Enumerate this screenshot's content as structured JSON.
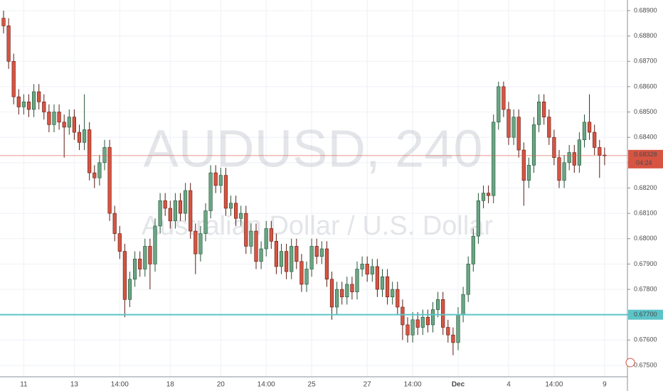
{
  "chart_data": {
    "type": "candlestick",
    "title": "AUDUSD, 240",
    "subtitle": "Australian Dollar / U.S. Dollar",
    "categories": [
      null,
      null,
      null,
      null,
      "11",
      null,
      null,
      null,
      null,
      null,
      null,
      null,
      null,
      null,
      "13",
      null,
      null,
      null,
      null,
      null,
      null,
      null,
      null,
      "14:00",
      null,
      null,
      null,
      null,
      null,
      null,
      null,
      null,
      null,
      "18",
      null,
      null,
      null,
      null,
      null,
      null,
      null,
      null,
      null,
      "20",
      null,
      null,
      null,
      null,
      null,
      null,
      null,
      null,
      "14:00",
      null,
      null,
      null,
      null,
      null,
      null,
      null,
      null,
      "25",
      null,
      null,
      null,
      null,
      null,
      null,
      null,
      null,
      null,
      null,
      "27",
      null,
      null,
      null,
      null,
      null,
      null,
      null,
      null,
      "14:00",
      null,
      null,
      null,
      null,
      null,
      null,
      null,
      null,
      "Dec",
      null,
      null,
      null,
      null,
      null,
      null,
      null,
      null,
      null,
      "4",
      null,
      null,
      null,
      null,
      null,
      null,
      null,
      null,
      "14:00",
      null,
      null,
      null,
      null,
      null,
      null,
      null,
      null,
      null,
      "9"
    ],
    "open": [
      0.6887,
      0.6884,
      0.687,
      0.6856,
      0.6852,
      0.6854,
      0.6851,
      0.6858,
      0.6854,
      0.685,
      0.6845,
      0.685,
      0.6846,
      0.6844,
      0.6848,
      0.6842,
      0.6838,
      0.6843,
      0.6826,
      0.6824,
      0.683,
      0.6836,
      0.681,
      0.6802,
      0.6795,
      0.6776,
      0.6784,
      0.6792,
      0.6788,
      0.6797,
      0.679,
      0.6805,
      0.6815,
      0.6812,
      0.6807,
      0.6815,
      0.681,
      0.6819,
      0.6803,
      0.6794,
      0.6802,
      0.6811,
      0.6826,
      0.6821,
      0.6825,
      0.6812,
      0.6814,
      0.6808,
      0.681,
      0.6797,
      0.6803,
      0.6791,
      0.6796,
      0.6804,
      0.6799,
      0.6789,
      0.6795,
      0.6787,
      0.6797,
      0.6791,
      0.6782,
      0.6788,
      0.6797,
      0.6793,
      0.6796,
      0.6784,
      0.6773,
      0.678,
      0.6777,
      0.6782,
      0.6779,
      0.6788,
      0.679,
      0.6786,
      0.6789,
      0.678,
      0.6785,
      0.6777,
      0.678,
      0.6773,
      0.6766,
      0.6762,
      0.6768,
      0.6765,
      0.6769,
      0.6766,
      0.6772,
      0.6776,
      0.6765,
      0.6762,
      0.6759,
      0.677,
      0.6778,
      0.679,
      0.6801,
      0.6815,
      0.6818,
      0.6817,
      0.6846,
      0.686,
      0.6851,
      0.684,
      0.6848,
      0.6835,
      0.6823,
      0.6829,
      0.6845,
      0.6854,
      0.6848,
      0.684,
      0.6832,
      0.6823,
      0.683,
      0.6834,
      0.6829,
      0.6839,
      0.6846,
      0.6842,
      0.6836,
      0.6833
    ],
    "high": [
      0.689,
      0.6887,
      0.6873,
      0.6859,
      0.6857,
      0.6857,
      0.6861,
      0.6861,
      0.6857,
      0.6853,
      0.6853,
      0.6853,
      0.6849,
      0.6851,
      0.6851,
      0.6845,
      0.6857,
      0.6846,
      0.6829,
      0.6833,
      0.6839,
      0.6839,
      0.6813,
      0.6805,
      0.6798,
      0.6787,
      0.6795,
      0.6795,
      0.68,
      0.68,
      0.6808,
      0.6818,
      0.6818,
      0.6815,
      0.6818,
      0.6818,
      0.6822,
      0.6822,
      0.6806,
      0.6805,
      0.6814,
      0.6829,
      0.6829,
      0.6828,
      0.6828,
      0.6817,
      0.6817,
      0.6813,
      0.6813,
      0.6806,
      0.6806,
      0.6799,
      0.6807,
      0.6807,
      0.6802,
      0.6798,
      0.6798,
      0.68,
      0.68,
      0.6794,
      0.6791,
      0.68,
      0.68,
      0.6799,
      0.6799,
      0.6787,
      0.6783,
      0.6783,
      0.6785,
      0.6785,
      0.6791,
      0.6793,
      0.6793,
      0.6792,
      0.6792,
      0.6788,
      0.6788,
      0.6783,
      0.6783,
      0.6776,
      0.6769,
      0.6771,
      0.6771,
      0.6772,
      0.6772,
      0.6775,
      0.6779,
      0.6779,
      0.6768,
      0.6765,
      0.6773,
      0.6781,
      0.6793,
      0.6804,
      0.6818,
      0.6821,
      0.6821,
      0.6849,
      0.6862,
      0.6862,
      0.6854,
      0.6851,
      0.6851,
      0.6838,
      0.6832,
      0.6848,
      0.6857,
      0.6857,
      0.6851,
      0.6843,
      0.6835,
      0.6833,
      0.6837,
      0.6837,
      0.6842,
      0.6849,
      0.6857,
      0.6845,
      0.6839,
      0.6836
    ],
    "low": [
      0.6881,
      0.6867,
      0.6853,
      0.6849,
      0.6849,
      0.6848,
      0.6848,
      0.6851,
      0.6847,
      0.6842,
      0.6842,
      0.6843,
      0.6832,
      0.6841,
      0.6839,
      0.6835,
      0.6835,
      0.6823,
      0.682,
      0.6821,
      0.6827,
      0.6807,
      0.6799,
      0.6792,
      0.6769,
      0.6773,
      0.6781,
      0.6785,
      0.6785,
      0.678,
      0.6787,
      0.6802,
      0.6809,
      0.6804,
      0.6804,
      0.6807,
      0.6807,
      0.68,
      0.6786,
      0.6791,
      0.6799,
      0.6808,
      0.6818,
      0.6818,
      0.6809,
      0.6809,
      0.6805,
      0.6805,
      0.6794,
      0.6794,
      0.6788,
      0.6788,
      0.6793,
      0.6796,
      0.6786,
      0.6786,
      0.6784,
      0.6784,
      0.6788,
      0.6779,
      0.6779,
      0.6785,
      0.679,
      0.679,
      0.6781,
      0.6768,
      0.677,
      0.6774,
      0.6774,
      0.6776,
      0.6776,
      0.6785,
      0.6783,
      0.6783,
      0.6777,
      0.6777,
      0.6774,
      0.6774,
      0.677,
      0.676,
      0.6759,
      0.6759,
      0.6762,
      0.6762,
      0.6763,
      0.6763,
      0.6769,
      0.6762,
      0.6759,
      0.6754,
      0.6756,
      0.6767,
      0.6775,
      0.6787,
      0.6798,
      0.6812,
      0.6814,
      0.6814,
      0.6843,
      0.6848,
      0.6837,
      0.6837,
      0.6832,
      0.6813,
      0.682,
      0.6826,
      0.6842,
      0.6845,
      0.6837,
      0.6829,
      0.682,
      0.682,
      0.6827,
      0.6826,
      0.6826,
      0.6836,
      0.6839,
      0.6833,
      0.6824,
      0.6829
    ],
    "close": [
      0.6884,
      0.687,
      0.6856,
      0.6852,
      0.6854,
      0.6851,
      0.6858,
      0.6854,
      0.685,
      0.6845,
      0.685,
      0.6846,
      0.6844,
      0.6848,
      0.6842,
      0.6838,
      0.6843,
      0.6826,
      0.6824,
      0.683,
      0.6836,
      0.681,
      0.6802,
      0.6795,
      0.6776,
      0.6784,
      0.6792,
      0.6788,
      0.6797,
      0.679,
      0.6805,
      0.6815,
      0.6812,
      0.6807,
      0.6815,
      0.681,
      0.6819,
      0.6803,
      0.6794,
      0.6802,
      0.6811,
      0.6826,
      0.6821,
      0.6825,
      0.6812,
      0.6814,
      0.6808,
      0.681,
      0.6797,
      0.6803,
      0.6791,
      0.6796,
      0.6804,
      0.6799,
      0.6789,
      0.6795,
      0.6787,
      0.6797,
      0.6791,
      0.6782,
      0.6788,
      0.6797,
      0.6793,
      0.6796,
      0.6784,
      0.6773,
      0.678,
      0.6777,
      0.6782,
      0.6779,
      0.6788,
      0.679,
      0.6786,
      0.6789,
      0.678,
      0.6785,
      0.6777,
      0.678,
      0.6773,
      0.6766,
      0.6762,
      0.6768,
      0.6765,
      0.6769,
      0.6766,
      0.6772,
      0.6776,
      0.6765,
      0.6762,
      0.6759,
      0.677,
      0.6778,
      0.679,
      0.6801,
      0.6815,
      0.6818,
      0.6817,
      0.6846,
      0.686,
      0.6851,
      0.684,
      0.6848,
      0.6835,
      0.6823,
      0.6829,
      0.6845,
      0.6854,
      0.6848,
      0.684,
      0.6832,
      0.6823,
      0.683,
      0.6834,
      0.6829,
      0.6839,
      0.6846,
      0.6842,
      0.6836,
      0.6833,
      0.68328
    ],
    "up_color": "#6ba583",
    "down_color": "#d75442",
    "ylim": [
      0.67455,
      0.68942
    ],
    "yticks": [
      {
        "value": 0.675,
        "label": "0.67500"
      },
      {
        "value": 0.676,
        "label": "0.67600"
      },
      {
        "value": 0.677,
        "label": "0.67700"
      },
      {
        "value": 0.678,
        "label": "0.67800"
      },
      {
        "value": 0.679,
        "label": "0.67900"
      },
      {
        "value": 0.68,
        "label": "0.68000"
      },
      {
        "value": 0.681,
        "label": "0.68100"
      },
      {
        "value": 0.682,
        "label": "0.68200"
      },
      {
        "value": 0.683,
        "label": "0.68300"
      },
      {
        "value": 0.684,
        "label": "0.68400"
      },
      {
        "value": 0.685,
        "label": "0.68500"
      },
      {
        "value": 0.686,
        "label": "0.68600"
      },
      {
        "value": 0.687,
        "label": "0.68700"
      },
      {
        "value": 0.688,
        "label": "0.68800"
      },
      {
        "value": 0.689,
        "label": "0.68900"
      }
    ],
    "grid": true,
    "hline": {
      "value": 0.677,
      "label": "0.67700",
      "color": "#5bc4c8"
    },
    "countdown": "04:24"
  }
}
